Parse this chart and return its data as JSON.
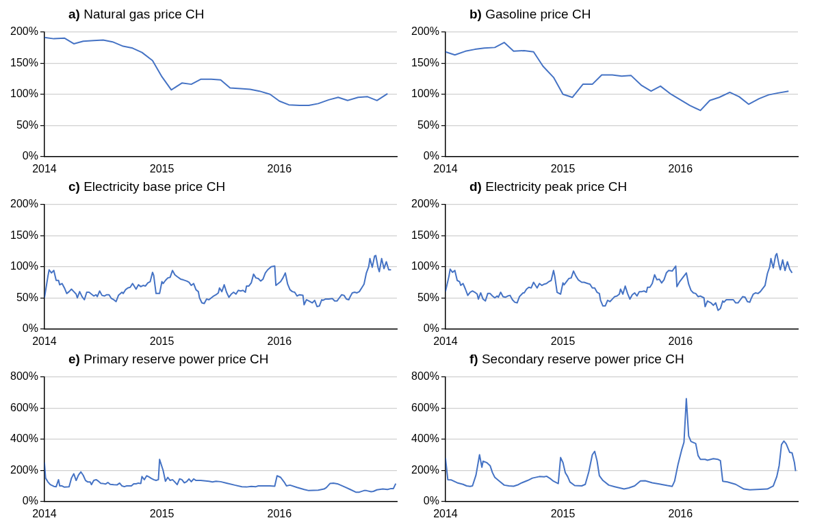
{
  "chart_data": [
    {
      "type": "line",
      "title": "a) Natural gas price CH",
      "color": "#4472c4",
      "grid": "y",
      "xlim": [
        2014,
        2017
      ],
      "xticks": [
        2014,
        2015,
        2016
      ],
      "ylim": [
        0,
        200
      ],
      "yticks": [
        {
          "value": 0,
          "label": "0%"
        },
        {
          "value": 50,
          "label": "50%"
        },
        {
          "value": 100,
          "label": "100%"
        },
        {
          "value": 150,
          "label": "150%"
        },
        {
          "value": 200,
          "label": "200%"
        }
      ],
      "x": [
        2014.0,
        2014.08,
        2014.17,
        2014.25,
        2014.33,
        2014.42,
        2014.5,
        2014.58,
        2014.67,
        2014.75,
        2014.83,
        2014.92,
        2015.0,
        2015.08,
        2015.17,
        2015.25,
        2015.33,
        2015.42,
        2015.5,
        2015.58,
        2015.67,
        2015.75,
        2015.83,
        2015.92,
        2016.0,
        2016.08,
        2016.17,
        2016.25,
        2016.33,
        2016.42,
        2016.5,
        2016.58,
        2016.67,
        2016.75,
        2016.83,
        2016.92
      ],
      "values": [
        191,
        189,
        190,
        181,
        185,
        186,
        187,
        184,
        177,
        174,
        167,
        154,
        128,
        107,
        118,
        116,
        124,
        124,
        123,
        110,
        109,
        108,
        105,
        100,
        89,
        83,
        82,
        82,
        85,
        91,
        95,
        90,
        95,
        96,
        90,
        101
      ]
    },
    {
      "type": "line",
      "title": "b) Gasoline price CH",
      "color": "#4472c4",
      "grid": "y",
      "xlim": [
        2014,
        2017
      ],
      "xticks": [
        2014,
        2015,
        2016
      ],
      "ylim": [
        0,
        200
      ],
      "yticks": [
        {
          "value": 0,
          "label": "0%"
        },
        {
          "value": 50,
          "label": "50%"
        },
        {
          "value": 100,
          "label": "100%"
        },
        {
          "value": 150,
          "label": "150%"
        },
        {
          "value": 200,
          "label": "200%"
        }
      ],
      "x": [
        2014.0,
        2014.08,
        2014.17,
        2014.25,
        2014.33,
        2014.42,
        2014.5,
        2014.58,
        2014.67,
        2014.75,
        2014.83,
        2014.92,
        2015.0,
        2015.08,
        2015.17,
        2015.25,
        2015.33,
        2015.42,
        2015.5,
        2015.58,
        2015.67,
        2015.75,
        2015.83,
        2015.92,
        2016.0,
        2016.08,
        2016.17,
        2016.25,
        2016.33,
        2016.42,
        2016.5,
        2016.58,
        2016.67,
        2016.75,
        2016.83,
        2016.92
      ],
      "values": [
        168,
        163,
        169,
        172,
        174,
        175,
        183,
        169,
        170,
        168,
        145,
        127,
        100,
        95,
        116,
        116,
        131,
        131,
        129,
        130,
        114,
        105,
        113,
        100,
        91,
        82,
        74,
        90,
        95,
        103,
        96,
        84,
        93,
        99,
        102,
        105
      ]
    },
    {
      "type": "line",
      "title": "c) Electricity base price CH",
      "color": "#4472c4",
      "grid": "y",
      "xlim": [
        2014,
        2017
      ],
      "xticks": [
        2014,
        2015,
        2016
      ],
      "ylim": [
        0,
        200
      ],
      "yticks": [
        {
          "value": 0,
          "label": "0%"
        },
        {
          "value": 50,
          "label": "50%"
        },
        {
          "value": 100,
          "label": "100%"
        },
        {
          "value": 150,
          "label": "150%"
        },
        {
          "value": 200,
          "label": "200%"
        }
      ],
      "x": [
        2014.0,
        2014.03,
        2014.04,
        2014.06,
        2014.08,
        2014.1,
        2014.12,
        2014.13,
        2014.15,
        2014.17,
        2014.19,
        2014.21,
        2014.23,
        2014.25,
        2014.27,
        2014.28,
        2014.3,
        2014.32,
        2014.34,
        2014.36,
        2014.38,
        2014.4,
        2014.42,
        2014.44,
        2014.45,
        2014.47,
        2014.49,
        2014.51,
        2014.53,
        2014.55,
        2014.57,
        2014.59,
        2014.61,
        2014.63,
        2014.66,
        2014.67,
        2014.69,
        2014.71,
        2014.73,
        2014.75,
        2014.76,
        2014.78,
        2014.8,
        2014.82,
        2014.84,
        2014.86,
        2014.88,
        2014.9,
        2014.92,
        2014.93,
        2014.95,
        2014.98,
        2015.0,
        2015.01,
        2015.03,
        2015.05,
        2015.07,
        2015.09,
        2015.11,
        2015.13,
        2015.16,
        2015.18,
        2015.21,
        2015.23,
        2015.25,
        2015.27,
        2015.29,
        2015.31,
        2015.32,
        2015.34,
        2015.36,
        2015.38,
        2015.4,
        2015.42,
        2015.44,
        2015.46,
        2015.48,
        2015.49,
        2015.51,
        2015.53,
        2015.55,
        2015.57,
        2015.59,
        2015.61,
        2015.63,
        2015.65,
        2015.67,
        2015.69,
        2015.71,
        2015.72,
        2015.74,
        2015.76,
        2015.78,
        2015.8,
        2015.82,
        2015.84,
        2015.86,
        2015.88,
        2015.9,
        2015.93,
        2015.96,
        2015.97,
        2015.99,
        2016.01,
        2016.03,
        2016.05,
        2016.07,
        2016.09,
        2016.11,
        2016.13,
        2016.15,
        2016.17,
        2016.2,
        2016.21,
        2016.23,
        2016.26,
        2016.28,
        2016.3,
        2016.32,
        2016.34,
        2016.36,
        2016.37,
        2016.39,
        2016.42,
        2016.45,
        2016.47,
        2016.49,
        2016.51,
        2016.53,
        2016.55,
        2016.57,
        2016.59,
        2016.6,
        2016.62,
        2016.64,
        2016.66,
        2016.68,
        2016.7,
        2016.72,
        2016.74,
        2016.76,
        2016.77,
        2016.79,
        2016.81,
        2016.82,
        2016.84,
        2016.85,
        2016.87,
        2016.89,
        2016.91,
        2016.93,
        2016.95
      ],
      "values": [
        50,
        85,
        95,
        90,
        94,
        78,
        78,
        71,
        73,
        66,
        57,
        60,
        64,
        60,
        56,
        50,
        60,
        52,
        47,
        59,
        59,
        56,
        53,
        55,
        52,
        61,
        54,
        53,
        55,
        55,
        49,
        47,
        44,
        54,
        59,
        57,
        63,
        66,
        67,
        73,
        70,
        64,
        71,
        68,
        70,
        69,
        74,
        76,
        91,
        86,
        57,
        57,
        76,
        73,
        78,
        82,
        83,
        94,
        87,
        84,
        80,
        79,
        77,
        75,
        70,
        73,
        63,
        60,
        50,
        42,
        41,
        48,
        47,
        50,
        53,
        55,
        58,
        66,
        60,
        71,
        59,
        51,
        56,
        59,
        56,
        62,
        61,
        62,
        59,
        69,
        69,
        74,
        88,
        82,
        81,
        77,
        80,
        90,
        95,
        100,
        101,
        70,
        73,
        76,
        82,
        90,
        72,
        63,
        60,
        59,
        53,
        55,
        54,
        39,
        47,
        44,
        42,
        46,
        36,
        37,
        47,
        46,
        48,
        48,
        49,
        45,
        45,
        50,
        55,
        54,
        48,
        47,
        51,
        58,
        59,
        58,
        60,
        66,
        72,
        90,
        100,
        113,
        99,
        117,
        118,
        98,
        92,
        113,
        97,
        108,
        95,
        95
      ]
    },
    {
      "type": "line",
      "title": "d) Electricity peak price CH",
      "color": "#4472c4",
      "grid": "y",
      "xlim": [
        2014,
        2017
      ],
      "xticks": [
        2014,
        2015,
        2016
      ],
      "ylim": [
        0,
        200
      ],
      "yticks": [
        {
          "value": 0,
          "label": "0%"
        },
        {
          "value": 50,
          "label": "50%"
        },
        {
          "value": 100,
          "label": "100%"
        },
        {
          "value": 150,
          "label": "150%"
        },
        {
          "value": 200,
          "label": "200%"
        }
      ],
      "x": [
        2014.0,
        2014.03,
        2014.04,
        2014.06,
        2014.08,
        2014.1,
        2014.12,
        2014.13,
        2014.15,
        2014.17,
        2014.19,
        2014.21,
        2014.23,
        2014.25,
        2014.27,
        2014.28,
        2014.3,
        2014.32,
        2014.34,
        2014.36,
        2014.38,
        2014.4,
        2014.42,
        2014.44,
        2014.45,
        2014.47,
        2014.49,
        2014.51,
        2014.53,
        2014.55,
        2014.57,
        2014.59,
        2014.61,
        2014.63,
        2014.66,
        2014.67,
        2014.69,
        2014.71,
        2014.73,
        2014.75,
        2014.76,
        2014.78,
        2014.8,
        2014.82,
        2014.84,
        2014.86,
        2014.88,
        2014.9,
        2014.92,
        2014.93,
        2014.95,
        2014.98,
        2015.0,
        2015.01,
        2015.03,
        2015.05,
        2015.07,
        2015.09,
        2015.11,
        2015.13,
        2015.16,
        2015.18,
        2015.21,
        2015.23,
        2015.25,
        2015.27,
        2015.29,
        2015.31,
        2015.32,
        2015.34,
        2015.36,
        2015.38,
        2015.4,
        2015.42,
        2015.44,
        2015.46,
        2015.48,
        2015.49,
        2015.51,
        2015.53,
        2015.55,
        2015.57,
        2015.59,
        2015.61,
        2015.63,
        2015.65,
        2015.67,
        2015.69,
        2015.71,
        2015.72,
        2015.74,
        2015.76,
        2015.78,
        2015.8,
        2015.82,
        2015.84,
        2015.86,
        2015.88,
        2015.9,
        2015.93,
        2015.96,
        2015.97,
        2015.99,
        2016.01,
        2016.03,
        2016.05,
        2016.07,
        2016.09,
        2016.11,
        2016.13,
        2016.15,
        2016.17,
        2016.2,
        2016.21,
        2016.23,
        2016.26,
        2016.28,
        2016.3,
        2016.32,
        2016.34,
        2016.36,
        2016.37,
        2016.39,
        2016.42,
        2016.45,
        2016.47,
        2016.49,
        2016.51,
        2016.53,
        2016.55,
        2016.57,
        2016.59,
        2016.6,
        2016.62,
        2016.64,
        2016.66,
        2016.68,
        2016.7,
        2016.72,
        2016.74,
        2016.76,
        2016.77,
        2016.79,
        2016.81,
        2016.82,
        2016.84,
        2016.85,
        2016.87,
        2016.89,
        2016.91,
        2016.93,
        2016.95
      ],
      "values": [
        60,
        85,
        96,
        91,
        94,
        78,
        76,
        70,
        73,
        64,
        54,
        59,
        61,
        59,
        56,
        48,
        58,
        48,
        45,
        57,
        57,
        53,
        50,
        53,
        51,
        59,
        52,
        51,
        53,
        54,
        47,
        43,
        42,
        52,
        58,
        58,
        64,
        67,
        66,
        75,
        72,
        66,
        73,
        70,
        72,
        73,
        76,
        78,
        94,
        85,
        59,
        56,
        74,
        71,
        76,
        81,
        82,
        93,
        85,
        79,
        75,
        75,
        73,
        72,
        66,
        66,
        59,
        57,
        46,
        37,
        37,
        46,
        44,
        48,
        52,
        53,
        56,
        64,
        56,
        69,
        57,
        48,
        55,
        58,
        53,
        60,
        60,
        61,
        59,
        67,
        67,
        73,
        87,
        79,
        80,
        74,
        79,
        90,
        94,
        93,
        101,
        68,
        75,
        80,
        85,
        90,
        72,
        62,
        58,
        57,
        52,
        53,
        50,
        36,
        45,
        42,
        38,
        42,
        30,
        33,
        45,
        43,
        47,
        47,
        47,
        42,
        42,
        47,
        52,
        51,
        44,
        43,
        48,
        56,
        58,
        57,
        60,
        65,
        70,
        89,
        100,
        113,
        98,
        118,
        121,
        102,
        95,
        111,
        94,
        108,
        96,
        90
      ]
    },
    {
      "type": "line",
      "title": "e) Primary reserve power price CH",
      "color": "#4472c4",
      "grid": "y",
      "xlim": [
        2014,
        2017
      ],
      "xticks": [
        2014,
        2015,
        2016
      ],
      "ylim": [
        0,
        800
      ],
      "yticks": [
        {
          "value": 0,
          "label": "0%"
        },
        {
          "value": 200,
          "label": "200%"
        },
        {
          "value": 400,
          "label": "400%"
        },
        {
          "value": 600,
          "label": "600%"
        },
        {
          "value": 800,
          "label": "800%"
        }
      ],
      "x": [
        2014.0,
        2014.01,
        2014.03,
        2014.05,
        2014.08,
        2014.1,
        2014.12,
        2014.13,
        2014.15,
        2014.17,
        2014.19,
        2014.21,
        2014.23,
        2014.25,
        2014.27,
        2014.29,
        2014.31,
        2014.33,
        2014.35,
        2014.37,
        2014.39,
        2014.4,
        2014.42,
        2014.44,
        2014.46,
        2014.48,
        2014.5,
        2014.52,
        2014.54,
        2014.56,
        2014.59,
        2014.62,
        2014.64,
        2014.66,
        2014.68,
        2014.7,
        2014.72,
        2014.74,
        2014.76,
        2014.78,
        2014.8,
        2014.82,
        2014.83,
        2014.85,
        2014.87,
        2014.89,
        2014.91,
        2014.93,
        2014.95,
        2014.97,
        2014.98,
        2015.01,
        2015.03,
        2015.05,
        2015.07,
        2015.09,
        2015.11,
        2015.13,
        2015.15,
        2015.17,
        2015.19,
        2015.21,
        2015.23,
        2015.25,
        2015.27,
        2015.29,
        2015.33,
        2015.4,
        2015.43,
        2015.46,
        2015.5,
        2015.55,
        2015.62,
        2015.68,
        2015.72,
        2015.76,
        2015.8,
        2015.82,
        2015.88,
        2015.92,
        2015.96,
        2015.98,
        2016.01,
        2016.04,
        2016.06,
        2016.09,
        2016.15,
        2016.21,
        2016.25,
        2016.33,
        2016.38,
        2016.4,
        2016.43,
        2016.46,
        2016.5,
        2016.55,
        2016.6,
        2016.65,
        2016.68,
        2016.72,
        2016.74,
        2016.78,
        2016.8,
        2016.83,
        2016.88,
        2016.92,
        2016.95,
        2016.97,
        2016.99
      ],
      "values": [
        250,
        150,
        125,
        108,
        97,
        95,
        140,
        100,
        100,
        92,
        93,
        95,
        150,
        178,
        135,
        170,
        190,
        168,
        135,
        125,
        125,
        108,
        135,
        140,
        130,
        117,
        115,
        112,
        122,
        110,
        108,
        107,
        118,
        100,
        95,
        100,
        100,
        100,
        113,
        113,
        118,
        115,
        160,
        140,
        165,
        158,
        148,
        140,
        135,
        140,
        270,
        200,
        130,
        155,
        135,
        140,
        125,
        108,
        145,
        140,
        120,
        127,
        145,
        127,
        145,
        135,
        135,
        130,
        125,
        130,
        127,
        118,
        105,
        95,
        93,
        97,
        95,
        100,
        100,
        100,
        98,
        165,
        155,
        125,
        100,
        105,
        90,
        77,
        70,
        73,
        80,
        90,
        115,
        118,
        112,
        95,
        78,
        60,
        60,
        70,
        70,
        63,
        65,
        75,
        80,
        77,
        83,
        83,
        115
      ]
    },
    {
      "type": "line",
      "title": "f) Secondary reserve power price CH",
      "color": "#4472c4",
      "grid": "y",
      "xlim": [
        2014,
        2017
      ],
      "xticks": [
        2014,
        2015,
        2016
      ],
      "ylim": [
        0,
        800
      ],
      "yticks": [
        {
          "value": 0,
          "label": "0%"
        },
        {
          "value": 200,
          "label": "200%"
        },
        {
          "value": 400,
          "label": "400%"
        },
        {
          "value": 600,
          "label": "600%"
        },
        {
          "value": 800,
          "label": "800%"
        }
      ],
      "x": [
        2014.0,
        2014.02,
        2014.05,
        2014.1,
        2014.15,
        2014.18,
        2014.21,
        2014.23,
        2014.26,
        2014.29,
        2014.31,
        2014.32,
        2014.35,
        2014.38,
        2014.4,
        2014.42,
        2014.46,
        2014.5,
        2014.54,
        2014.58,
        2014.62,
        2014.65,
        2014.7,
        2014.74,
        2014.8,
        2014.84,
        2014.86,
        2014.89,
        2014.92,
        2014.96,
        2014.98,
        2015.0,
        2015.02,
        2015.04,
        2015.06,
        2015.1,
        2015.16,
        2015.19,
        2015.22,
        2015.25,
        2015.27,
        2015.29,
        2015.31,
        2015.34,
        2015.39,
        2015.44,
        2015.52,
        2015.56,
        2015.61,
        2015.66,
        2015.7,
        2015.76,
        2015.82,
        2015.85,
        2015.89,
        2015.93,
        2015.95,
        2015.98,
        2016.01,
        2016.03,
        2016.05,
        2016.07,
        2016.09,
        2016.13,
        2016.15,
        2016.17,
        2016.21,
        2016.23,
        2016.28,
        2016.32,
        2016.34,
        2016.36,
        2016.4,
        2016.47,
        2016.54,
        2016.59,
        2016.68,
        2016.74,
        2016.79,
        2016.82,
        2016.84,
        2016.86,
        2016.88,
        2016.9,
        2016.93,
        2016.95,
        2016.97,
        2016.98
      ],
      "values": [
        280,
        140,
        138,
        120,
        110,
        100,
        97,
        100,
        170,
        300,
        220,
        258,
        250,
        230,
        185,
        155,
        130,
        105,
        100,
        98,
        108,
        120,
        135,
        150,
        160,
        158,
        162,
        148,
        130,
        115,
        282,
        250,
        185,
        160,
        125,
        102,
        100,
        110,
        190,
        300,
        322,
        262,
        165,
        135,
        105,
        95,
        80,
        87,
        100,
        132,
        133,
        120,
        112,
        108,
        102,
        97,
        130,
        240,
        330,
        380,
        660,
        420,
        385,
        372,
        295,
        270,
        270,
        265,
        275,
        270,
        262,
        130,
        125,
        110,
        80,
        75,
        78,
        80,
        100,
        160,
        230,
        365,
        388,
        370,
        315,
        312,
        250,
        195
      ]
    }
  ]
}
